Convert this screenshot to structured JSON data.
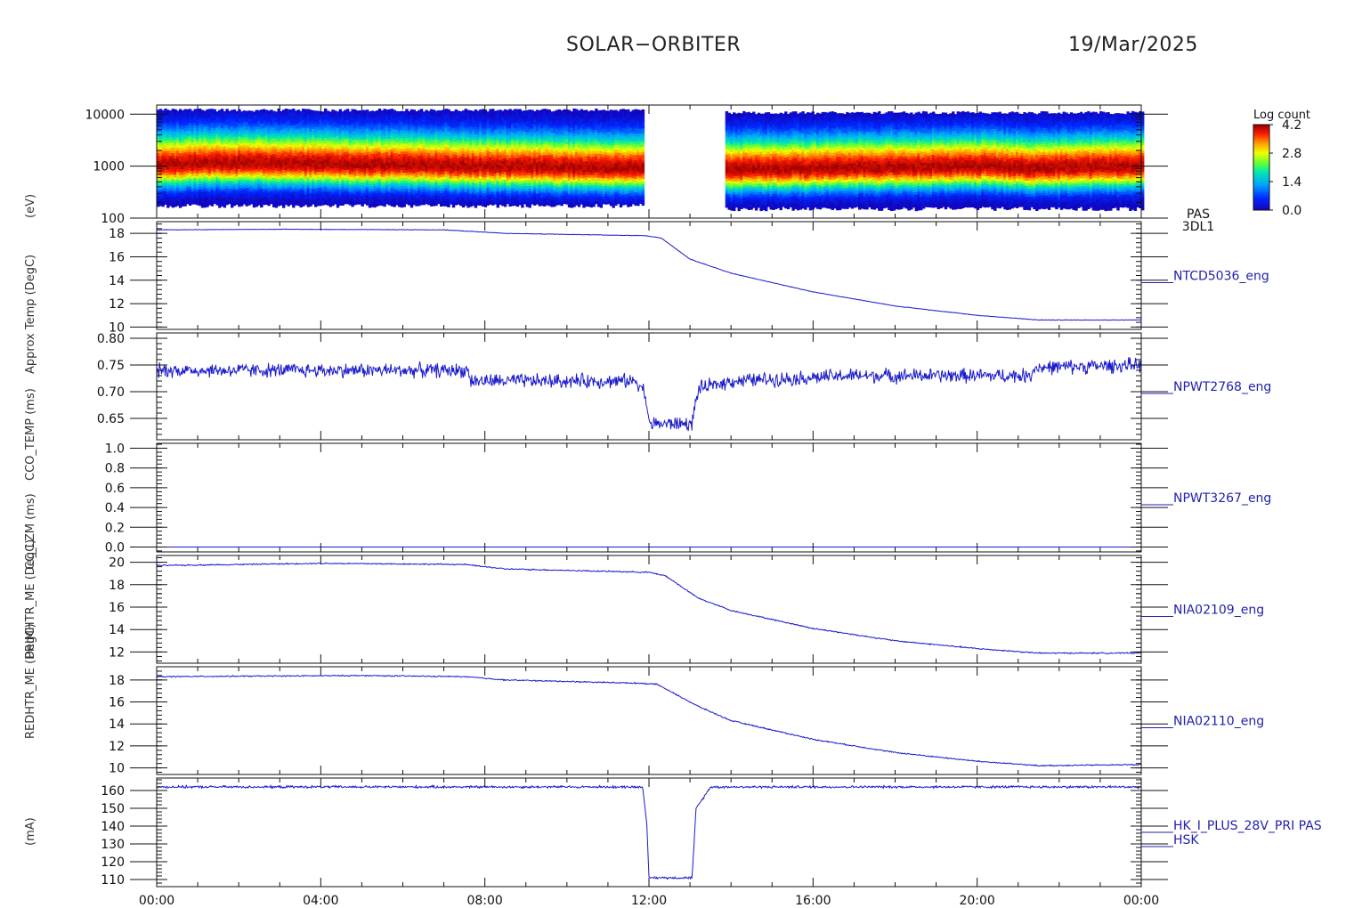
{
  "header": {
    "title": "SOLAR−ORBITER",
    "date": "19/Mar/2025"
  },
  "colorbar": {
    "label": "Log count",
    "ticks": [
      "4.2",
      "2.8",
      "1.4",
      "0.0"
    ]
  },
  "chart_data": [
    {
      "type": "heatmap",
      "panel_id": "pas",
      "right_label": [
        "PAS",
        "3DL1"
      ],
      "ylabel": "(eV)",
      "yscale": "log",
      "ylim": [
        100,
        15000
      ],
      "yticks": [
        "10000",
        "1000",
        "100"
      ],
      "ytick_values": [
        10000,
        1000,
        100
      ],
      "gap_hours": [
        11.85,
        13.85
      ],
      "peak_energy_eV": [
        [
          0,
          1050
        ],
        [
          1.5,
          1150
        ],
        [
          6,
          1050
        ],
        [
          11.8,
          900
        ],
        [
          13.9,
          850
        ],
        [
          20,
          1000
        ],
        [
          21.5,
          900
        ],
        [
          24,
          1000
        ]
      ],
      "colorbar_range": [
        0.0,
        4.2
      ]
    },
    {
      "type": "line",
      "panel_id": "ntcd",
      "right_label": [
        "NTCD5036_eng"
      ],
      "ylabel": "Approx Temp (DegC)",
      "ylim": [
        9.8,
        19
      ],
      "yticks": [
        "18",
        "16",
        "14",
        "12",
        "10"
      ],
      "ytick_values": [
        18,
        16,
        14,
        12,
        10
      ],
      "noise": 0.02,
      "points": [
        [
          0,
          18.3
        ],
        [
          3,
          18.35
        ],
        [
          7,
          18.3
        ],
        [
          8.5,
          18.0
        ],
        [
          11.9,
          17.8
        ],
        [
          12.3,
          17.6
        ],
        [
          13.0,
          15.8
        ],
        [
          14,
          14.6
        ],
        [
          16,
          13.0
        ],
        [
          18,
          11.8
        ],
        [
          20,
          11.0
        ],
        [
          21.5,
          10.6
        ],
        [
          24,
          10.6
        ]
      ]
    },
    {
      "type": "line",
      "panel_id": "npwt2768",
      "right_label": [
        "NPWT2768_eng"
      ],
      "ylabel": "CCO_TEMP (ms)",
      "ylim": [
        0.61,
        0.81
      ],
      "yticks": [
        "0.80",
        "0.75",
        "0.70",
        "0.65"
      ],
      "ytick_values": [
        0.8,
        0.75,
        0.7,
        0.65
      ],
      "noise": 0.012,
      "points": [
        [
          0,
          0.74
        ],
        [
          7.6,
          0.74
        ],
        [
          7.65,
          0.72
        ],
        [
          11.7,
          0.72
        ],
        [
          11.9,
          0.7
        ],
        [
          12.0,
          0.64
        ],
        [
          13.05,
          0.64
        ],
        [
          13.2,
          0.705
        ],
        [
          14,
          0.72
        ],
        [
          17,
          0.73
        ],
        [
          21.3,
          0.73
        ],
        [
          21.4,
          0.745
        ],
        [
          24,
          0.75
        ]
      ]
    },
    {
      "type": "line",
      "panel_id": "npwt3267",
      "right_label": [
        "NPWT3267_eng"
      ],
      "ylabel": "CC_LZM (ms)",
      "ylim": [
        -0.05,
        1.05
      ],
      "yticks": [
        "1.0",
        "0.8",
        "0.6",
        "0.4",
        "0.2",
        "0.0"
      ],
      "ytick_values": [
        1.0,
        0.8,
        0.6,
        0.4,
        0.2,
        0.0
      ],
      "noise": 0,
      "points": [
        [
          0,
          0.0
        ],
        [
          24,
          0.0
        ]
      ]
    },
    {
      "type": "line",
      "panel_id": "nia02109",
      "right_label": [
        "NIA02109_eng"
      ],
      "ylabel": "PRIMHTR_ME (DegC)",
      "ylim": [
        11,
        20.6
      ],
      "yticks": [
        "20",
        "18",
        "16",
        "14",
        "12"
      ],
      "ytick_values": [
        20,
        18,
        16,
        14,
        12
      ],
      "noise": 0.05,
      "points": [
        [
          0,
          19.7
        ],
        [
          4,
          19.9
        ],
        [
          7.5,
          19.8
        ],
        [
          8.5,
          19.4
        ],
        [
          12.0,
          19.1
        ],
        [
          12.4,
          18.8
        ],
        [
          13.2,
          16.8
        ],
        [
          14,
          15.7
        ],
        [
          16,
          14.1
        ],
        [
          18,
          13.0
        ],
        [
          20,
          12.3
        ],
        [
          21.5,
          11.9
        ],
        [
          24,
          11.9
        ]
      ]
    },
    {
      "type": "line",
      "panel_id": "nia02110",
      "right_label": [
        "NIA02110_eng"
      ],
      "ylabel": "REDHTR_ME (DegC)",
      "ylim": [
        9.4,
        19.2
      ],
      "yticks": [
        "18",
        "16",
        "14",
        "12",
        "10"
      ],
      "ytick_values": [
        18,
        16,
        14,
        12,
        10
      ],
      "noise": 0.05,
      "points": [
        [
          0,
          18.3
        ],
        [
          5,
          18.4
        ],
        [
          7.5,
          18.3
        ],
        [
          8.5,
          18.0
        ],
        [
          11.8,
          17.7
        ],
        [
          12.2,
          17.6
        ],
        [
          13.2,
          15.6
        ],
        [
          14,
          14.3
        ],
        [
          16,
          12.6
        ],
        [
          18,
          11.4
        ],
        [
          20,
          10.6
        ],
        [
          21.5,
          10.2
        ],
        [
          24,
          10.3
        ]
      ]
    },
    {
      "type": "line",
      "panel_id": "hk",
      "right_label": [
        "HK_I_PLUS_28V_PRI PAS",
        "HSK"
      ],
      "ylabel": "(mA)",
      "ylim": [
        106,
        167
      ],
      "yticks": [
        "160",
        "150",
        "140",
        "130",
        "120",
        "110"
      ],
      "ytick_values": [
        160,
        150,
        140,
        130,
        120,
        110
      ],
      "noise": 0.6,
      "points": [
        [
          0,
          162
        ],
        [
          11.85,
          162
        ],
        [
          11.95,
          140
        ],
        [
          12.0,
          111
        ],
        [
          13.05,
          111
        ],
        [
          13.15,
          150
        ],
        [
          13.3,
          155
        ],
        [
          13.5,
          162
        ],
        [
          24,
          162
        ]
      ]
    }
  ],
  "xaxis": {
    "ticks": [
      "00:00",
      "04:00",
      "08:00",
      "12:00",
      "16:00",
      "20:00",
      "00:00"
    ],
    "tick_hours": [
      0,
      4,
      8,
      12,
      16,
      20,
      24
    ],
    "xlim": [
      0,
      24
    ]
  },
  "ylabels_text": [
    "(eV)",
    "Approx Temp (DegC)",
    "CCO_TEMP (ms)",
    "CC_LZM (ms)",
    "PRIMHTR_ME (DegC)",
    "REDHTR_ME (DegC)",
    "(mA)"
  ],
  "colors": {
    "line": "#1a1acc",
    "axis": "#111111",
    "label_blue": "#2222aa"
  }
}
